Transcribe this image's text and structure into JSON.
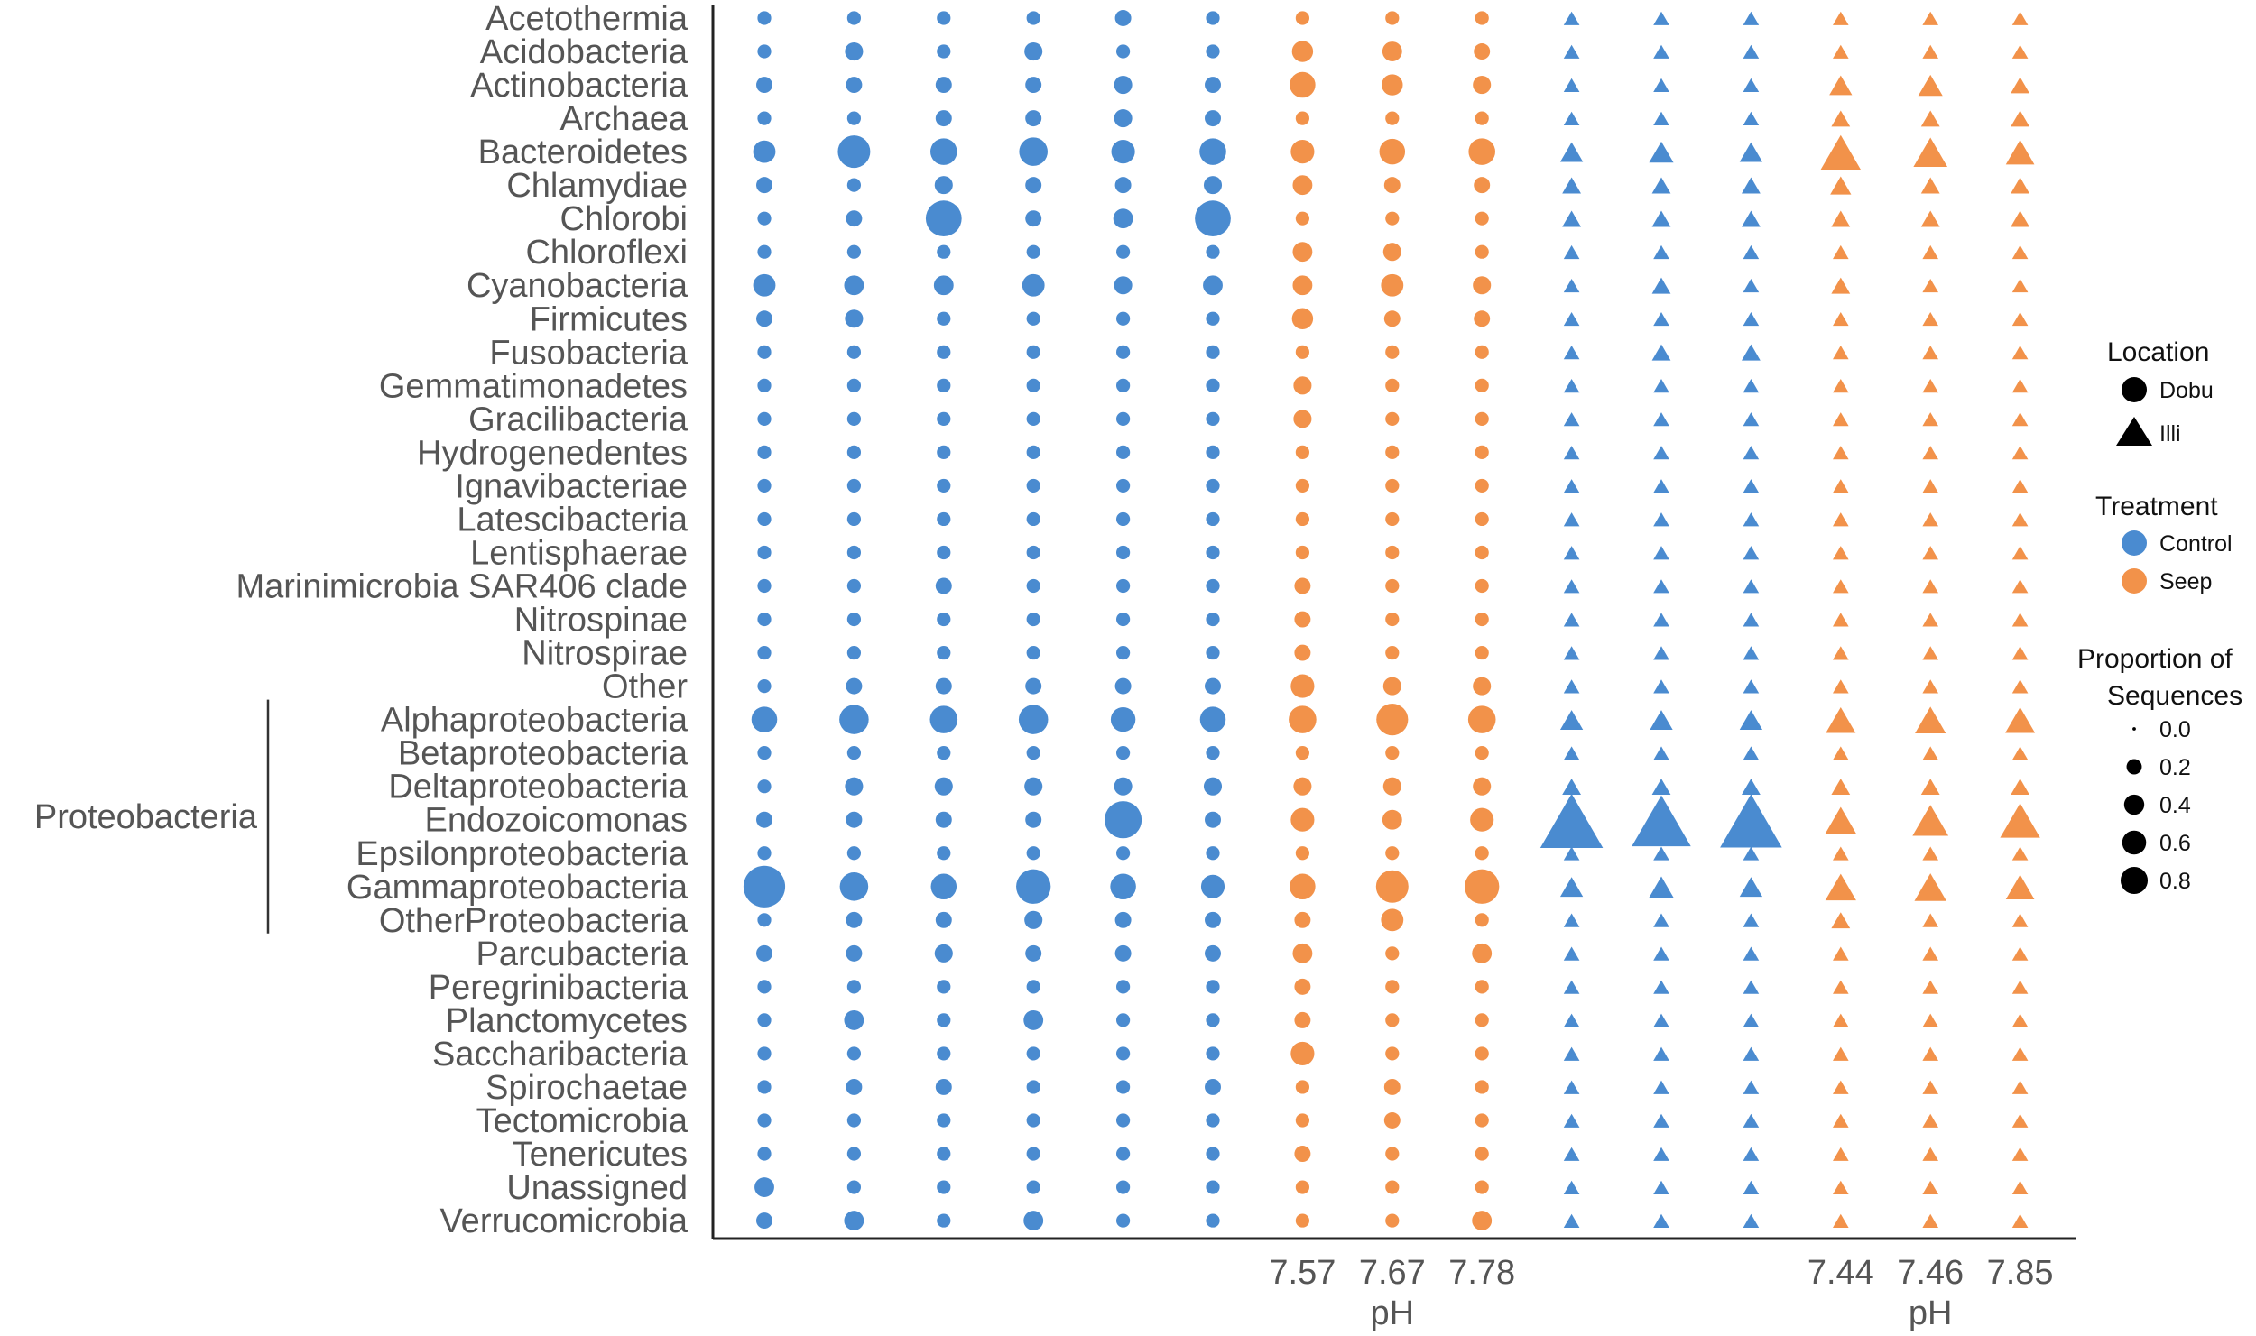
{
  "chart_data": {
    "type": "scatter",
    "title": "",
    "ylabel": "",
    "categories": [
      "Acetothermia",
      "Acidobacteria",
      "Actinobacteria",
      "Archaea",
      "Bacteroidetes",
      "Chlamydiae",
      "Chlorobi",
      "Chloroflexi",
      "Cyanobacteria",
      "Firmicutes",
      "Fusobacteria",
      "Gemmatimonadetes",
      "Gracilibacteria",
      "Hydrogenedentes",
      "Ignavibacteriae",
      "Latescibacteria",
      "Lentisphaerae",
      "Marinimicrobia  SAR406 clade",
      "Nitrospinae",
      "Nitrospirae",
      "Other",
      "Alphaproteobacteria",
      "Betaproteobacteria",
      "Deltaproteobacteria",
      "Endozoicomonas",
      "Epsilonproteobacteria",
      "Gammaproteobacteria",
      "OtherProteobacteria",
      "Parcubacteria",
      "Peregrinibacteria",
      "Planctomycetes",
      "Saccharibacteria",
      "Spirochaetae",
      "Tectomicrobia",
      "Tenericutes",
      "Unassigned",
      "Verrucomicrobia"
    ],
    "group_bracket": {
      "label": "Proteobacteria",
      "from": "Alphaproteobacteria",
      "to": "OtherProteobacteria"
    },
    "samples": [
      {
        "location": "Dobu",
        "treatment": "Control",
        "ph": ""
      },
      {
        "location": "Dobu",
        "treatment": "Control",
        "ph": ""
      },
      {
        "location": "Dobu",
        "treatment": "Control",
        "ph": ""
      },
      {
        "location": "Dobu",
        "treatment": "Control",
        "ph": ""
      },
      {
        "location": "Dobu",
        "treatment": "Control",
        "ph": ""
      },
      {
        "location": "Dobu",
        "treatment": "Control",
        "ph": ""
      },
      {
        "location": "Dobu",
        "treatment": "Seep",
        "ph": "7.57"
      },
      {
        "location": "Dobu",
        "treatment": "Seep",
        "ph": "7.67"
      },
      {
        "location": "Dobu",
        "treatment": "Seep",
        "ph": "7.78"
      },
      {
        "location": "Illi",
        "treatment": "Control",
        "ph": ""
      },
      {
        "location": "Illi",
        "treatment": "Control",
        "ph": ""
      },
      {
        "location": "Illi",
        "treatment": "Control",
        "ph": ""
      },
      {
        "location": "Illi",
        "treatment": "Seep",
        "ph": "7.44"
      },
      {
        "location": "Illi",
        "treatment": "Seep",
        "ph": "7.46"
      },
      {
        "location": "Illi",
        "treatment": "Seep",
        "ph": "7.85"
      }
    ],
    "x_axis_titles": [
      "pH",
      "pH"
    ],
    "values": [
      [
        0.01,
        0.01,
        0.01,
        0.01,
        0.02,
        0.01,
        0.01,
        0.01,
        0.01,
        0.01,
        0.01,
        0.01,
        0.01,
        0.01,
        0.01
      ],
      [
        0.01,
        0.03,
        0.01,
        0.03,
        0.01,
        0.01,
        0.05,
        0.04,
        0.02,
        0.01,
        0.01,
        0.01,
        0.01,
        0.01,
        0.01
      ],
      [
        0.02,
        0.02,
        0.02,
        0.02,
        0.03,
        0.02,
        0.09,
        0.05,
        0.03,
        0.01,
        0.01,
        0.01,
        0.04,
        0.05,
        0.02
      ],
      [
        0.01,
        0.01,
        0.02,
        0.02,
        0.03,
        0.02,
        0.01,
        0.01,
        0.01,
        0.01,
        0.01,
        0.01,
        0.02,
        0.02,
        0.02
      ],
      [
        0.06,
        0.17,
        0.1,
        0.12,
        0.07,
        0.1,
        0.07,
        0.09,
        0.1,
        0.04,
        0.05,
        0.04,
        0.2,
        0.13,
        0.08
      ],
      [
        0.02,
        0.01,
        0.03,
        0.02,
        0.02,
        0.03,
        0.04,
        0.02,
        0.02,
        0.02,
        0.02,
        0.02,
        0.03,
        0.02,
        0.02
      ],
      [
        0.01,
        0.02,
        0.22,
        0.02,
        0.04,
        0.22,
        0.01,
        0.01,
        0.01,
        0.02,
        0.02,
        0.02,
        0.02,
        0.02,
        0.02
      ],
      [
        0.01,
        0.01,
        0.01,
        0.01,
        0.01,
        0.01,
        0.04,
        0.03,
        0.01,
        0.01,
        0.01,
        0.01,
        0.01,
        0.01,
        0.01
      ],
      [
        0.06,
        0.04,
        0.04,
        0.06,
        0.03,
        0.04,
        0.04,
        0.06,
        0.03,
        0.01,
        0.02,
        0.01,
        0.02,
        0.01,
        0.01
      ],
      [
        0.02,
        0.03,
        0.01,
        0.01,
        0.01,
        0.01,
        0.05,
        0.02,
        0.02,
        0.01,
        0.01,
        0.01,
        0.01,
        0.01,
        0.01
      ],
      [
        0.01,
        0.01,
        0.01,
        0.01,
        0.01,
        0.01,
        0.01,
        0.01,
        0.01,
        0.01,
        0.02,
        0.02,
        0.01,
        0.01,
        0.01
      ],
      [
        0.01,
        0.01,
        0.01,
        0.01,
        0.01,
        0.01,
        0.03,
        0.01,
        0.01,
        0.01,
        0.01,
        0.01,
        0.01,
        0.01,
        0.01
      ],
      [
        0.01,
        0.01,
        0.01,
        0.01,
        0.01,
        0.01,
        0.03,
        0.01,
        0.01,
        0.01,
        0.01,
        0.01,
        0.01,
        0.01,
        0.01
      ],
      [
        0.01,
        0.01,
        0.01,
        0.01,
        0.01,
        0.01,
        0.01,
        0.01,
        0.01,
        0.01,
        0.01,
        0.01,
        0.01,
        0.01,
        0.01
      ],
      [
        0.01,
        0.01,
        0.01,
        0.01,
        0.01,
        0.01,
        0.01,
        0.01,
        0.01,
        0.01,
        0.01,
        0.01,
        0.01,
        0.01,
        0.01
      ],
      [
        0.01,
        0.01,
        0.01,
        0.01,
        0.01,
        0.01,
        0.01,
        0.01,
        0.01,
        0.01,
        0.01,
        0.01,
        0.01,
        0.01,
        0.01
      ],
      [
        0.01,
        0.01,
        0.01,
        0.01,
        0.01,
        0.01,
        0.01,
        0.01,
        0.01,
        0.01,
        0.01,
        0.01,
        0.01,
        0.01,
        0.01
      ],
      [
        0.01,
        0.01,
        0.02,
        0.01,
        0.01,
        0.01,
        0.02,
        0.01,
        0.01,
        0.01,
        0.01,
        0.01,
        0.01,
        0.01,
        0.01
      ],
      [
        0.01,
        0.01,
        0.01,
        0.01,
        0.01,
        0.01,
        0.02,
        0.01,
        0.01,
        0.01,
        0.01,
        0.01,
        0.01,
        0.01,
        0.01
      ],
      [
        0.01,
        0.01,
        0.01,
        0.01,
        0.01,
        0.01,
        0.02,
        0.01,
        0.01,
        0.01,
        0.01,
        0.01,
        0.01,
        0.01,
        0.01
      ],
      [
        0.01,
        0.02,
        0.02,
        0.02,
        0.02,
        0.02,
        0.07,
        0.03,
        0.03,
        0.01,
        0.01,
        0.01,
        0.01,
        0.01,
        0.01
      ],
      [
        0.09,
        0.13,
        0.11,
        0.13,
        0.08,
        0.09,
        0.11,
        0.16,
        0.11,
        0.04,
        0.04,
        0.04,
        0.09,
        0.1,
        0.09
      ],
      [
        0.01,
        0.01,
        0.01,
        0.01,
        0.01,
        0.01,
        0.01,
        0.01,
        0.01,
        0.01,
        0.01,
        0.01,
        0.01,
        0.01,
        0.01
      ],
      [
        0.01,
        0.03,
        0.03,
        0.03,
        0.03,
        0.03,
        0.03,
        0.03,
        0.03,
        0.02,
        0.02,
        0.02,
        0.02,
        0.02,
        0.02
      ],
      [
        0.02,
        0.02,
        0.02,
        0.02,
        0.24,
        0.02,
        0.07,
        0.04,
        0.07,
        0.6,
        0.52,
        0.58,
        0.1,
        0.15,
        0.2
      ],
      [
        0.01,
        0.01,
        0.01,
        0.01,
        0.01,
        0.01,
        0.01,
        0.01,
        0.01,
        0.01,
        0.01,
        0.01,
        0.01,
        0.01,
        0.01
      ],
      [
        0.32,
        0.12,
        0.09,
        0.2,
        0.09,
        0.07,
        0.09,
        0.17,
        0.2,
        0.04,
        0.05,
        0.04,
        0.1,
        0.11,
        0.08
      ],
      [
        0.01,
        0.02,
        0.02,
        0.03,
        0.02,
        0.02,
        0.02,
        0.06,
        0.01,
        0.01,
        0.01,
        0.01,
        0.02,
        0.01,
        0.01
      ],
      [
        0.02,
        0.02,
        0.03,
        0.02,
        0.02,
        0.02,
        0.04,
        0.01,
        0.04,
        0.01,
        0.01,
        0.01,
        0.01,
        0.01,
        0.01
      ],
      [
        0.01,
        0.01,
        0.01,
        0.01,
        0.01,
        0.01,
        0.02,
        0.01,
        0.01,
        0.01,
        0.01,
        0.01,
        0.01,
        0.01,
        0.01
      ],
      [
        0.01,
        0.04,
        0.01,
        0.04,
        0.01,
        0.01,
        0.02,
        0.01,
        0.01,
        0.01,
        0.01,
        0.01,
        0.01,
        0.01,
        0.01
      ],
      [
        0.01,
        0.01,
        0.01,
        0.01,
        0.01,
        0.01,
        0.07,
        0.01,
        0.01,
        0.01,
        0.01,
        0.01,
        0.01,
        0.01,
        0.01
      ],
      [
        0.01,
        0.02,
        0.02,
        0.01,
        0.01,
        0.02,
        0.01,
        0.02,
        0.01,
        0.01,
        0.01,
        0.01,
        0.01,
        0.01,
        0.01
      ],
      [
        0.01,
        0.01,
        0.01,
        0.01,
        0.01,
        0.01,
        0.01,
        0.02,
        0.01,
        0.01,
        0.01,
        0.01,
        0.01,
        0.01,
        0.01
      ],
      [
        0.01,
        0.01,
        0.01,
        0.01,
        0.01,
        0.01,
        0.02,
        0.01,
        0.01,
        0.01,
        0.01,
        0.01,
        0.01,
        0.01,
        0.01
      ],
      [
        0.04,
        0.01,
        0.01,
        0.01,
        0.01,
        0.01,
        0.01,
        0.01,
        0.01,
        0.01,
        0.01,
        0.01,
        0.01,
        0.01,
        0.01
      ],
      [
        0.02,
        0.04,
        0.01,
        0.04,
        0.01,
        0.01,
        0.01,
        0.01,
        0.04,
        0.01,
        0.01,
        0.01,
        0.01,
        0.01,
        0.01
      ]
    ],
    "colors": {
      "Control": "#4a8bd0",
      "Seep": "#f2924a",
      "axis": "#222222",
      "label": "#555555"
    },
    "legend": {
      "location_title": "Location",
      "location_entries": [
        {
          "label": "Dobu",
          "shape": "circle"
        },
        {
          "label": "Illi",
          "shape": "triangle"
        }
      ],
      "treatment_title": "Treatment",
      "treatment_entries": [
        {
          "label": "Control",
          "color": "#4a8bd0"
        },
        {
          "label": "Seep",
          "color": "#f2924a"
        }
      ],
      "size_title_line1": "Proportion of",
      "size_title_line2": "Sequences",
      "size_entries": [
        {
          "label": "0.0",
          "value": 0.0
        },
        {
          "label": "0.2",
          "value": 0.2
        },
        {
          "label": "0.4",
          "value": 0.4
        },
        {
          "label": "0.6",
          "value": 0.6
        },
        {
          "label": "0.8",
          "value": 0.8
        }
      ],
      "placement": "right"
    },
    "grid": false
  }
}
